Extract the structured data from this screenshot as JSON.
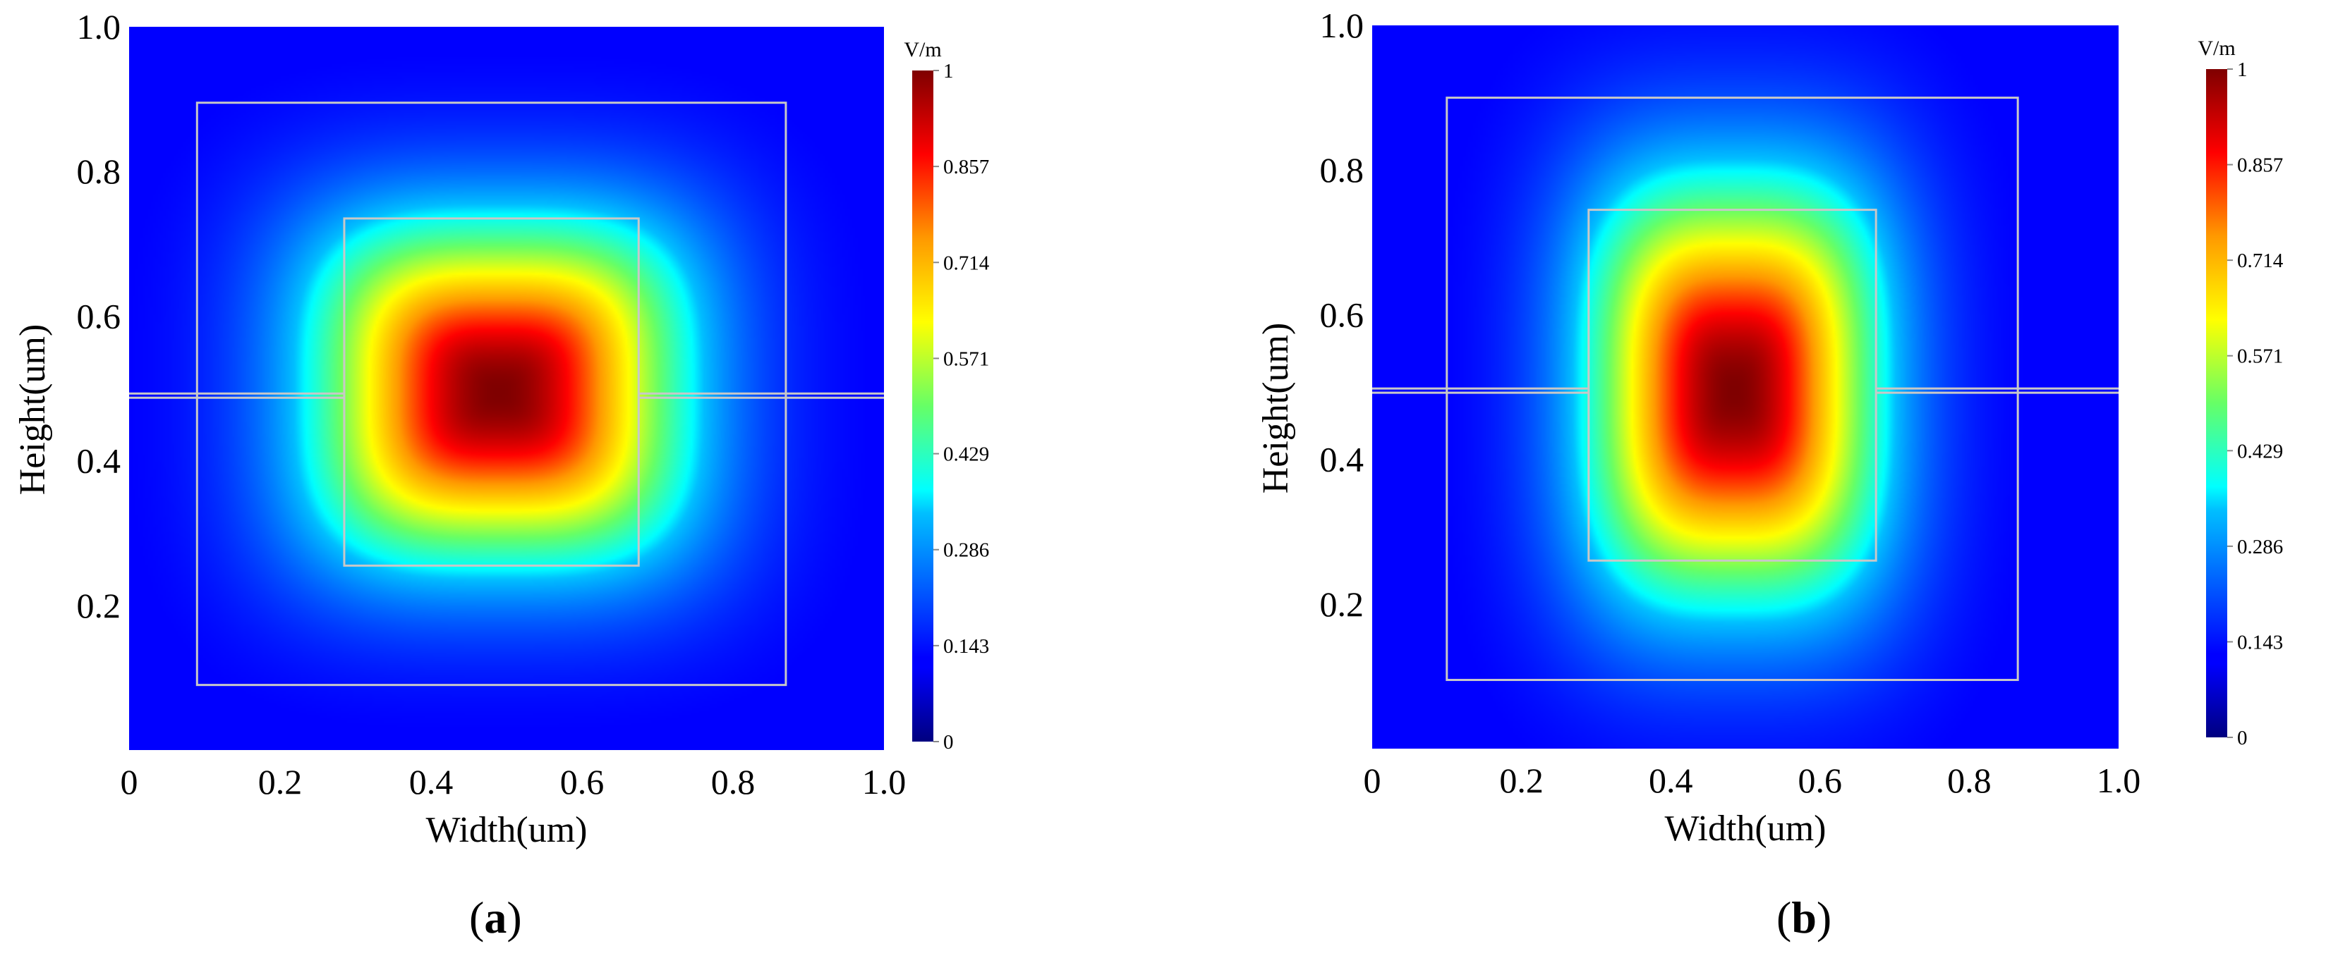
{
  "chart_data": [
    {
      "type": "heatmap",
      "panel_label": "a",
      "xlabel": "Width(um)",
      "ylabel": "Height(um)",
      "xlim": [
        0,
        1.0
      ],
      "ylim": [
        0,
        1.0
      ],
      "x_ticks": [
        {
          "value": 0,
          "label": "0"
        },
        {
          "value": 0.2,
          "label": "0.2"
        },
        {
          "value": 0.4,
          "label": "0.4"
        },
        {
          "value": 0.6,
          "label": "0.6"
        },
        {
          "value": 0.8,
          "label": "0.8"
        },
        {
          "value": 1.0,
          "label": "1.0"
        }
      ],
      "y_ticks": [
        {
          "value": 0.2,
          "label": "0.2"
        },
        {
          "value": 0.4,
          "label": "0.4"
        },
        {
          "value": 0.6,
          "label": "0.6"
        },
        {
          "value": 0.8,
          "label": "0.8"
        },
        {
          "value": 1.0,
          "label": "1.0"
        }
      ],
      "colorbar": {
        "unit": "V/m",
        "range": [
          0,
          1
        ],
        "ticks": [
          {
            "value": 0,
            "label": "0"
          },
          {
            "value": 0.143,
            "label": "0.143"
          },
          {
            "value": 0.286,
            "label": "0.286"
          },
          {
            "value": 0.429,
            "label": "0.429"
          },
          {
            "value": 0.571,
            "label": "0.571"
          },
          {
            "value": 0.714,
            "label": "0.714"
          },
          {
            "value": 0.857,
            "label": "0.857"
          },
          {
            "value": 1,
            "label": "1"
          }
        ]
      },
      "field": {
        "center": [
          0.49,
          0.495
        ],
        "sigma": [
          0.22,
          0.21
        ],
        "exponent": 3.2
      },
      "structures": {
        "outer_rect": {
          "x0": 0.09,
          "x1": 0.87,
          "y0": 0.09,
          "y1": 0.895
        },
        "inner_rect": {
          "x0": 0.285,
          "x1": 0.675,
          "y0": 0.255,
          "y1": 0.735
        },
        "slab_line": {
          "y": 0.49
        }
      }
    },
    {
      "type": "heatmap",
      "panel_label": "b",
      "xlabel": "Width(um)",
      "ylabel": "Height(um)",
      "xlim": [
        0,
        1.0
      ],
      "ylim": [
        0,
        1.0
      ],
      "x_ticks": [
        {
          "value": 0,
          "label": "0"
        },
        {
          "value": 0.2,
          "label": "0.2"
        },
        {
          "value": 0.4,
          "label": "0.4"
        },
        {
          "value": 0.6,
          "label": "0.6"
        },
        {
          "value": 0.8,
          "label": "0.8"
        },
        {
          "value": 1.0,
          "label": "1.0"
        }
      ],
      "y_ticks": [
        {
          "value": 0.2,
          "label": "0.2"
        },
        {
          "value": 0.4,
          "label": "0.4"
        },
        {
          "value": 0.6,
          "label": "0.6"
        },
        {
          "value": 0.8,
          "label": "0.8"
        },
        {
          "value": 1.0,
          "label": "1.0"
        }
      ],
      "colorbar": {
        "unit": "V/m",
        "range": [
          0,
          1
        ],
        "ticks": [
          {
            "value": 0,
            "label": "0"
          },
          {
            "value": 0.143,
            "label": "0.143"
          },
          {
            "value": 0.286,
            "label": "0.286"
          },
          {
            "value": 0.429,
            "label": "0.429"
          },
          {
            "value": 0.571,
            "label": "0.571"
          },
          {
            "value": 0.714,
            "label": "0.714"
          },
          {
            "value": 0.857,
            "label": "0.857"
          },
          {
            "value": 1,
            "label": "1"
          }
        ]
      },
      "field": {
        "center": [
          0.485,
          0.495
        ],
        "sigma": [
          0.175,
          0.26
        ],
        "exponent": 3.0
      },
      "structures": {
        "outer_rect": {
          "x0": 0.1,
          "x1": 0.865,
          "y0": 0.095,
          "y1": 0.9
        },
        "inner_rect": {
          "x0": 0.29,
          "x1": 0.675,
          "y0": 0.26,
          "y1": 0.745
        },
        "slab_line": {
          "y": 0.495
        }
      }
    }
  ]
}
